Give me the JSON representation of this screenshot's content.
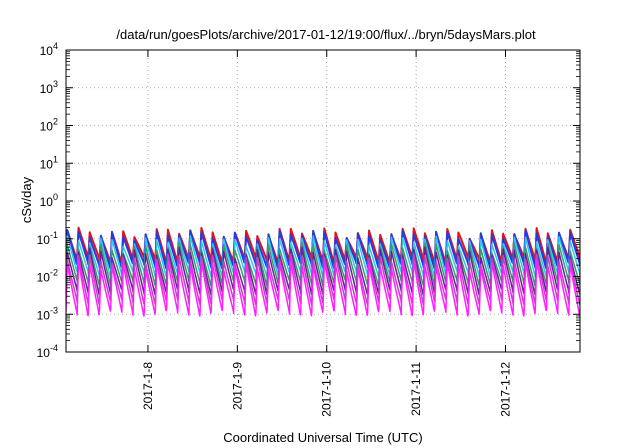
{
  "chart_data": {
    "type": "line",
    "title": "/data/run/goesPlots/archive/2017-01-12/19:00/flux/../bryn/5daysMars.plot",
    "xlabel": "Coordinated Universal Time (UTC)",
    "ylabel": "cSv/day",
    "x_start": "2017-01-07 02:00",
    "x_end": "2017-01-12 20:00",
    "x_ticks": [
      {
        "date": "2017-01-08",
        "label": "2017-1-8"
      },
      {
        "date": "2017-01-09",
        "label": "2017-1-9"
      },
      {
        "date": "2017-01-10",
        "label": "2017-1-10"
      },
      {
        "date": "2017-01-11",
        "label": "2017-1-11"
      },
      {
        "date": "2017-01-12",
        "label": "2017-1-12"
      }
    ],
    "y_scale": "log",
    "ylim": [
      0.0001,
      10000
    ],
    "y_ticks": [
      {
        "value": 0.0001,
        "base": "10",
        "exp": "-4"
      },
      {
        "value": 0.001,
        "base": "10",
        "exp": "-3"
      },
      {
        "value": 0.01,
        "base": "10",
        "exp": "-2"
      },
      {
        "value": 0.1,
        "base": "10",
        "exp": "-1"
      },
      {
        "value": 1,
        "base": "10",
        "exp": "0"
      },
      {
        "value": 10,
        "base": "10",
        "exp": "1"
      },
      {
        "value": 100,
        "base": "10",
        "exp": "2"
      },
      {
        "value": 1000,
        "base": "10",
        "exp": "3"
      },
      {
        "value": 10000,
        "base": "10",
        "exp": "4"
      }
    ],
    "grid": true,
    "cycle_period_hours": 3,
    "series": [
      {
        "color": "#e8101f",
        "peak": 0.15,
        "trough": 0.028
      },
      {
        "color": "#1f3fe0",
        "peak": 0.13,
        "trough": 0.02
      },
      {
        "color": "#2fc7e6",
        "peak": 0.09,
        "trough": 0.012
      },
      {
        "color": "#3f9a6a",
        "peak": 0.06,
        "trough": 0.007
      },
      {
        "color": "#6a1f9a",
        "peak": 0.045,
        "trough": 0.004
      },
      {
        "color": "#c63fc6",
        "peak": 0.03,
        "trough": 0.0022
      },
      {
        "color": "#ff20ff",
        "peak": 0.02,
        "trough": 0.0011
      }
    ]
  }
}
